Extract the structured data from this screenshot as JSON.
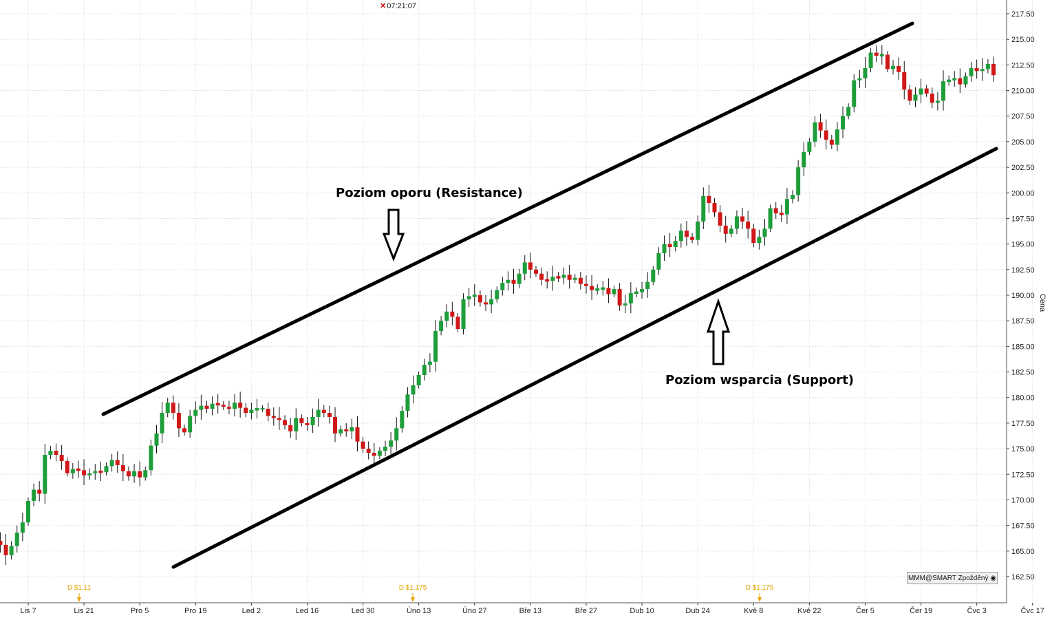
{
  "clock": {
    "time": "07:21:07"
  },
  "badge": {
    "label": "MMM@SMART Zpožděný"
  },
  "annotations": {
    "resistance_label": "Poziom oporu (Resistance)",
    "support_label": "Poziom wsparcia (Support)"
  },
  "colors": {
    "up": "#1e9e3a",
    "down": "#d01818",
    "dividend": "#e6a500",
    "lines": "#000000",
    "grid": "#d8d8d8"
  },
  "chart_data": {
    "type": "candlestick",
    "ylabel": "Cena",
    "ylim": [
      161,
      218.5
    ],
    "y_ticks": [
      162.5,
      165,
      167.5,
      170,
      172.5,
      175,
      177.5,
      180,
      182.5,
      185,
      187.5,
      190,
      192.5,
      195,
      197.5,
      200,
      202.5,
      205,
      207.5,
      210,
      212.5,
      215,
      217.5
    ],
    "y_tick_labels": [
      "162.50",
      "165.00",
      "167.50",
      "170.00",
      "172.50",
      "175.00",
      "177.50",
      "180.00",
      "182.50",
      "185.00",
      "187.50",
      "190.00",
      "192.50",
      "195.00",
      "197.50",
      "200.00",
      "202.50",
      "205.00",
      "207.50",
      "210.00",
      "212.50",
      "215.00",
      "217.50"
    ],
    "x_tick_labels": [
      "Lis 7",
      "Lis 21",
      "Pro 5",
      "Pro 19",
      "Led 2",
      "Led 16",
      "Led 30",
      "Úno 13",
      "Úno 27",
      "Bře 13",
      "Bře 27",
      "Dub 10",
      "Dub 24",
      "Kvě 8",
      "Kvě 22",
      "Čer 5",
      "Čer 19",
      "Čvc 3",
      "Čvc 17"
    ],
    "x_tick_index": [
      7,
      17,
      27,
      37,
      47,
      57,
      67,
      77,
      87,
      97,
      107,
      117,
      127,
      137,
      147,
      157,
      167,
      177,
      187
    ],
    "closes": [
      166.5,
      166.0,
      165.6,
      164.6,
      165.5,
      166.8,
      167.8,
      169.9,
      171.0,
      170.6,
      174.4,
      174.8,
      174.4,
      173.8,
      172.6,
      173.0,
      172.9,
      172.4,
      172.6,
      172.8,
      172.7,
      173.3,
      173.9,
      173.4,
      172.8,
      172.3,
      172.8,
      172.2,
      172.9,
      175.3,
      176.5,
      178.5,
      179.5,
      178.5,
      177.0,
      176.6,
      178.2,
      178.8,
      179.2,
      178.9,
      179.4,
      179.3,
      179.1,
      178.9,
      179.5,
      179.0,
      178.5,
      178.8,
      178.9,
      178.9,
      178.2,
      178.0,
      177.8,
      177.3,
      176.7,
      178.0,
      177.5,
      177.3,
      178.1,
      178.8,
      178.5,
      178.1,
      176.5,
      176.9,
      176.7,
      177.1,
      175.7,
      175.0,
      174.6,
      174.3,
      174.8,
      175.2,
      175.8,
      177.0,
      178.7,
      180.3,
      181.2,
      182.2,
      183.2,
      183.5,
      186.5,
      187.5,
      188.4,
      187.9,
      186.7,
      189.6,
      189.9,
      190.0,
      189.3,
      189.1,
      189.6,
      190.5,
      191.2,
      191.5,
      191.1,
      192.1,
      193.2,
      192.5,
      192.1,
      191.5,
      191.4,
      191.8,
      191.7,
      192.0,
      191.5,
      191.7,
      191.1,
      190.9,
      190.5,
      190.6,
      190.7,
      190.1,
      190.6,
      189.0,
      189.2,
      190.2,
      190.3,
      190.6,
      191.3,
      192.5,
      194.1,
      195.0,
      194.7,
      195.3,
      196.3,
      195.7,
      195.4,
      197.2,
      199.7,
      199.0,
      198.1,
      196.8,
      196.0,
      196.5,
      197.7,
      197.2,
      196.5,
      195.1,
      195.7,
      196.5,
      198.5,
      198.0,
      197.9,
      199.4,
      199.8,
      202.5,
      204.0,
      205.0,
      206.9,
      206.1,
      205.2,
      204.7,
      206.2,
      207.5,
      208.4,
      211.0,
      211.2,
      212.2,
      213.7,
      213.4,
      213.5,
      212.1,
      212.4,
      211.8,
      210.1,
      209.0,
      209.6,
      210.2,
      209.7,
      208.8,
      209.0,
      210.9,
      211.0,
      211.2,
      210.6,
      211.4,
      212.2,
      211.9,
      212.1,
      212.6,
      211.5
    ]
  }
}
